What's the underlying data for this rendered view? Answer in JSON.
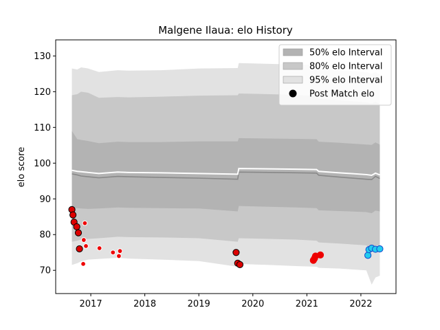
{
  "chart_data": {
    "type": "line",
    "title": "Malgene Ilaua: elo History",
    "xlabel": "",
    "ylabel": "elo score",
    "xlim": [
      2016.35,
      2022.65
    ],
    "ylim": [
      63.5,
      134.5
    ],
    "xticks": [
      2017,
      2018,
      2019,
      2020,
      2021,
      2022
    ],
    "yticks": [
      70,
      80,
      90,
      100,
      110,
      120,
      130
    ],
    "grid": false,
    "legend_position": "upper right",
    "legend": [
      {
        "label": "50% elo Interval",
        "kind": "band",
        "color": "#b3b3b3"
      },
      {
        "label": "80% elo Interval",
        "kind": "band",
        "color": "#c8c8c8"
      },
      {
        "label": "95% elo Interval",
        "kind": "band",
        "color": "#e2e2e2"
      },
      {
        "label": "Post Match elo",
        "kind": "marker",
        "color": "#000000"
      }
    ],
    "x": [
      2016.65,
      2016.75,
      2016.82,
      2016.95,
      2017.15,
      2017.5,
      2017.7,
      2018.3,
      2019.0,
      2019.72,
      2019.74,
      2020.3,
      2020.8,
      2021.18,
      2021.22,
      2021.6,
      2022.1,
      2022.2,
      2022.27,
      2022.35
    ],
    "series": [
      {
        "name": "mean",
        "color": "#888888",
        "values": [
          97.0,
          96.7,
          96.4,
          96.2,
          95.9,
          96.3,
          96.2,
          96.0,
          95.8,
          95.5,
          97.5,
          97.4,
          97.3,
          97.2,
          96.6,
          96.1,
          95.5,
          95.4,
          96.3,
          95.7
        ]
      },
      {
        "name": "prior",
        "color": "#ffffff",
        "values": [
          98.0,
          97.7,
          97.6,
          97.4,
          97.1,
          97.5,
          97.4,
          97.3,
          97.1,
          96.9,
          98.5,
          98.4,
          98.3,
          98.2,
          97.7,
          97.3,
          96.8,
          96.6,
          97.2,
          96.7
        ]
      }
    ],
    "bands": [
      {
        "level": "95%",
        "color": "#e2e2e2",
        "lower": [
          71.5,
          72.0,
          72.5,
          73.0,
          73.2,
          73.5,
          73.3,
          73.0,
          72.6,
          71.0,
          71.8,
          71.5,
          71.2,
          71.0,
          70.7,
          70.5,
          70.0,
          66.0,
          68.0,
          68.5
        ],
        "upper": [
          126.5,
          126.2,
          126.8,
          126.5,
          125.5,
          126.0,
          125.9,
          126.0,
          126.5,
          126.6,
          128.0,
          127.8,
          127.6,
          127.5,
          126.5,
          126.0,
          125.5,
          125.0,
          125.5,
          124.8
        ]
      },
      {
        "level": "80%",
        "color": "#c8c8c8",
        "lower": [
          78.0,
          78.3,
          78.6,
          78.8,
          79.0,
          79.4,
          79.3,
          79.2,
          79.0,
          78.0,
          79.0,
          78.8,
          78.6,
          78.3,
          77.8,
          77.5,
          77.0,
          76.0,
          77.0,
          76.8
        ],
        "upper": [
          119.0,
          119.3,
          120.0,
          119.7,
          118.3,
          118.5,
          118.4,
          118.6,
          118.9,
          119.0,
          119.5,
          119.3,
          119.1,
          118.8,
          118.0,
          117.6,
          117.0,
          116.7,
          117.2,
          116.5
        ]
      },
      {
        "level": "50%",
        "color": "#b3b3b3",
        "lower": [
          87.5,
          87.4,
          87.3,
          87.2,
          87.3,
          87.6,
          87.5,
          87.4,
          87.3,
          86.5,
          88.0,
          87.8,
          87.6,
          87.4,
          86.8,
          86.6,
          86.3,
          86.0,
          86.7,
          86.5
        ],
        "upper": [
          109.0,
          106.7,
          106.5,
          106.2,
          105.6,
          106.0,
          105.9,
          105.9,
          106.1,
          106.1,
          107.0,
          106.9,
          106.8,
          106.7,
          106.0,
          105.7,
          105.2,
          105.1,
          105.8,
          105.2
        ]
      }
    ],
    "points": [
      {
        "x": 2016.65,
        "y": 87.0,
        "color": "#dd0000",
        "edge": "#000000",
        "size": "large"
      },
      {
        "x": 2016.67,
        "y": 85.5,
        "color": "#dd0000",
        "edge": "#000000",
        "size": "large"
      },
      {
        "x": 2016.69,
        "y": 83.5,
        "color": "#dd0000",
        "edge": "#000000",
        "size": "large"
      },
      {
        "x": 2016.74,
        "y": 82.2,
        "color": "#dd0000",
        "edge": "#000000",
        "size": "large"
      },
      {
        "x": 2016.77,
        "y": 80.5,
        "color": "#dd0000",
        "edge": "#000000",
        "size": "large"
      },
      {
        "x": 2016.79,
        "y": 76.0,
        "color": "#dd0000",
        "edge": "#000000",
        "size": "large"
      },
      {
        "x": 2016.86,
        "y": 71.8,
        "color": "#ee0000",
        "edge": "#ffffff",
        "size": "small"
      },
      {
        "x": 2016.87,
        "y": 78.5,
        "color": "#ee0000",
        "edge": "#ffffff",
        "size": "small"
      },
      {
        "x": 2016.89,
        "y": 83.2,
        "color": "#ee0000",
        "edge": "#ffffff",
        "size": "small"
      },
      {
        "x": 2016.91,
        "y": 76.8,
        "color": "#ee0000",
        "edge": "#ffffff",
        "size": "small"
      },
      {
        "x": 2017.16,
        "y": 76.2,
        "color": "#ee0000",
        "edge": "#ffffff",
        "size": "small"
      },
      {
        "x": 2017.41,
        "y": 75.0,
        "color": "#ee0000",
        "edge": "#ffffff",
        "size": "small"
      },
      {
        "x": 2017.52,
        "y": 74.0,
        "color": "#ee0000",
        "edge": "#ffffff",
        "size": "small"
      },
      {
        "x": 2017.54,
        "y": 75.4,
        "color": "#ee0000",
        "edge": "#ffffff",
        "size": "small"
      },
      {
        "x": 2019.69,
        "y": 75.0,
        "color": "#dd0000",
        "edge": "#000000",
        "size": "large"
      },
      {
        "x": 2019.72,
        "y": 72.0,
        "color": "#dd0000",
        "edge": "#000000",
        "size": "large"
      },
      {
        "x": 2019.76,
        "y": 71.6,
        "color": "#dd0000",
        "edge": "#000000",
        "size": "large"
      },
      {
        "x": 2021.12,
        "y": 72.8,
        "color": "#ee0000",
        "edge": "#ee0000",
        "size": "large"
      },
      {
        "x": 2021.14,
        "y": 73.3,
        "color": "#ee0000",
        "edge": "#ee0000",
        "size": "large"
      },
      {
        "x": 2021.16,
        "y": 74.0,
        "color": "#ee0000",
        "edge": "#ee0000",
        "size": "large"
      },
      {
        "x": 2021.25,
        "y": 74.3,
        "color": "#ee0000",
        "edge": "#ee0000",
        "size": "large"
      },
      {
        "x": 2022.13,
        "y": 74.2,
        "color": "#22ccee",
        "edge": "#1144cc",
        "size": "large"
      },
      {
        "x": 2022.15,
        "y": 75.8,
        "color": "#22ccee",
        "edge": "#1144cc",
        "size": "large"
      },
      {
        "x": 2022.2,
        "y": 76.2,
        "color": "#22ccee",
        "edge": "#1144cc",
        "size": "large"
      },
      {
        "x": 2022.27,
        "y": 75.9,
        "color": "#22ccee",
        "edge": "#1144cc",
        "size": "large"
      },
      {
        "x": 2022.35,
        "y": 76.0,
        "color": "#22ccee",
        "edge": "#1144cc",
        "size": "large"
      }
    ]
  }
}
